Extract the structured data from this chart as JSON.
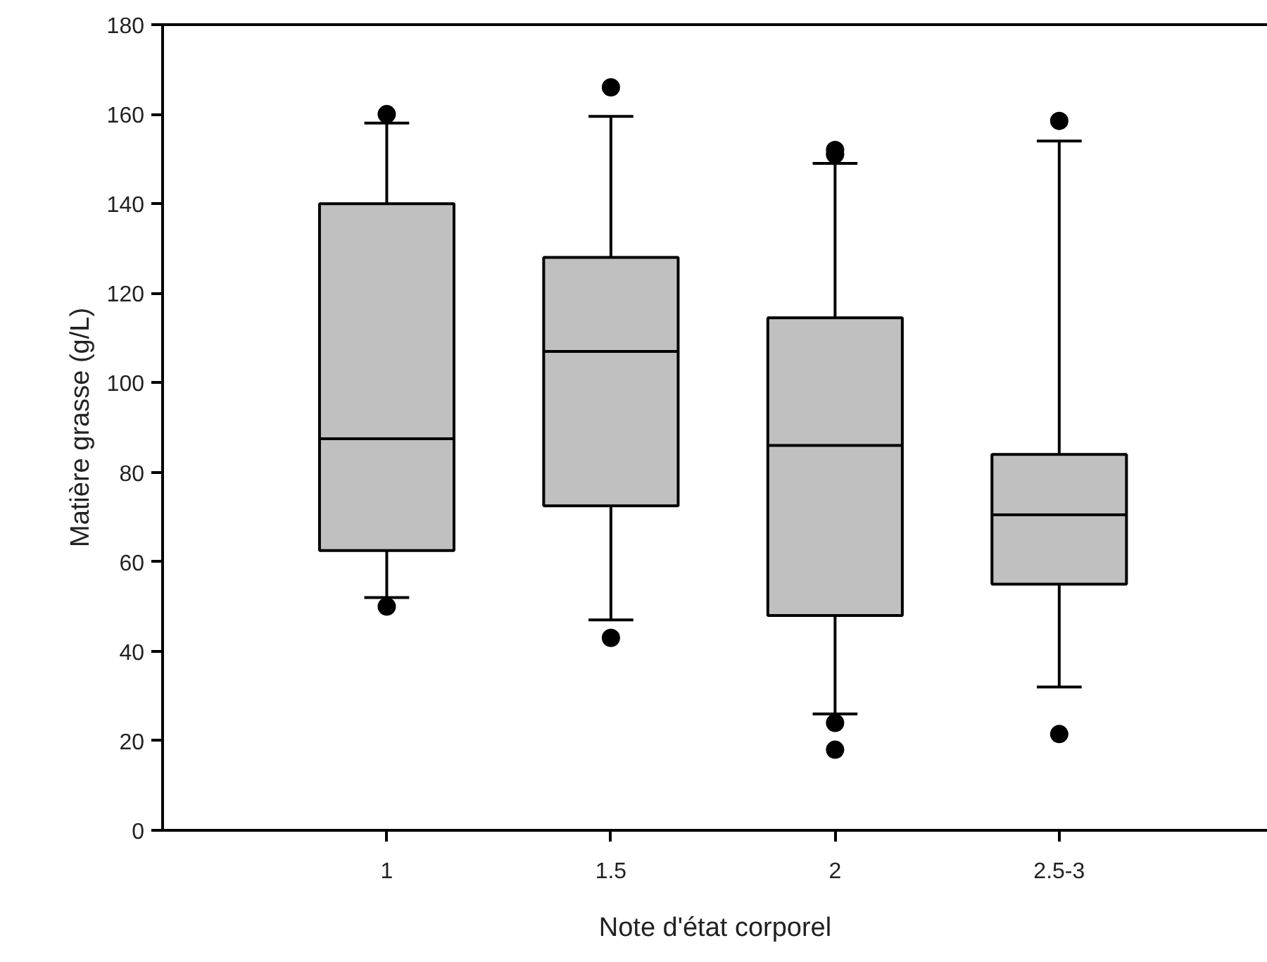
{
  "chart_data": {
    "type": "box",
    "xlabel": "Note d'état corporel",
    "ylabel": "Matière grasse (g/L)",
    "categories": [
      "1",
      "1.5",
      "2",
      "2.5-3"
    ],
    "color": "#c0c0c0",
    "marker": "circle",
    "boxes": [
      {
        "low": 52,
        "q1": 62.5,
        "median": 87.5,
        "q3": 140,
        "high": 158,
        "outliers": [
          50,
          160
        ]
      },
      {
        "low": 47,
        "q1": 72.5,
        "median": 107,
        "q3": 128,
        "high": 159.5,
        "outliers": [
          43,
          166
        ]
      },
      {
        "low": 26,
        "q1": 48,
        "median": 86,
        "q3": 114.5,
        "high": 149,
        "outliers": [
          18,
          24,
          151,
          152
        ]
      },
      {
        "low": 32,
        "q1": 55,
        "median": 70.5,
        "q3": 84,
        "high": 154,
        "outliers": [
          21.5,
          158.5
        ]
      }
    ],
    "ylim": [
      0,
      180
    ],
    "yticks": [
      0,
      20,
      40,
      60,
      80,
      100,
      120,
      140,
      160,
      180
    ]
  }
}
